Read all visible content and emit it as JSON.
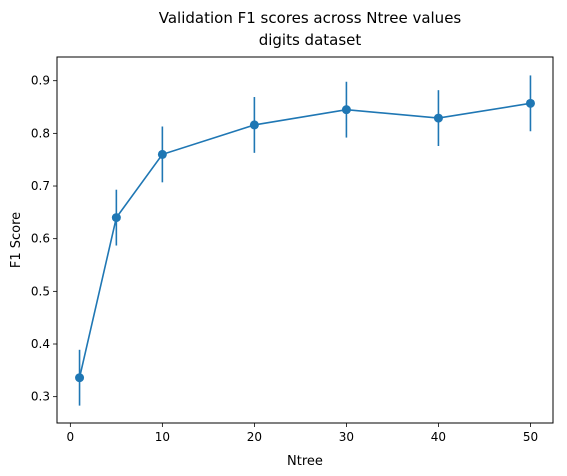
{
  "chart_data": {
    "type": "line",
    "title": "Validation F1 scores across Ntree values",
    "subtitle": "digits dataset",
    "xlabel": "Ntree",
    "ylabel": "F1 Score",
    "xlim": [
      -1.45,
      52.45
    ],
    "ylim": [
      0.25,
      0.945
    ],
    "xticks": [
      0,
      10,
      20,
      30,
      40,
      50
    ],
    "xtick_labels": [
      "0",
      "10",
      "20",
      "30",
      "40",
      "50"
    ],
    "yticks": [
      0.3,
      0.4,
      0.5,
      0.6,
      0.7,
      0.8,
      0.9
    ],
    "ytick_labels": [
      "0.3",
      "0.4",
      "0.5",
      "0.6",
      "0.7",
      "0.8",
      "0.9"
    ],
    "grid": false,
    "series": [
      {
        "x": [
          1,
          5,
          10,
          20,
          30,
          40,
          50
        ],
        "values": [
          0.336,
          0.64,
          0.76,
          0.816,
          0.845,
          0.829,
          0.857
        ],
        "err_low": [
          0.283,
          0.587,
          0.707,
          0.763,
          0.792,
          0.776,
          0.804
        ],
        "err_high": [
          0.389,
          0.693,
          0.813,
          0.869,
          0.898,
          0.882,
          0.91
        ],
        "color": "#1f77b4",
        "marker": "circle"
      }
    ]
  }
}
